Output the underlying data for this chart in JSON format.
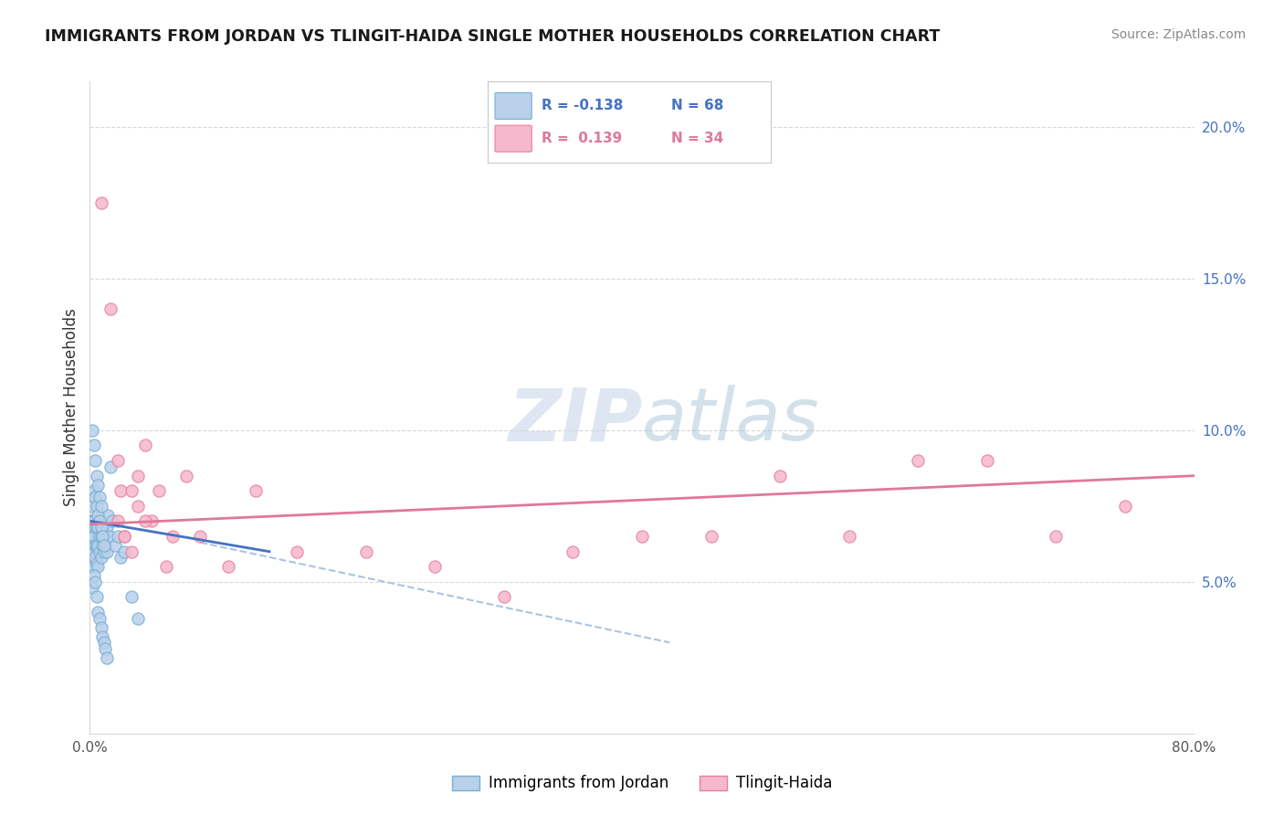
{
  "title": "IMMIGRANTS FROM JORDAN VS TLINGIT-HAIDA SINGLE MOTHER HOUSEHOLDS CORRELATION CHART",
  "source": "Source: ZipAtlas.com",
  "ylabel": "Single Mother Households",
  "xlim": [
    0.0,
    0.8
  ],
  "ylim": [
    0.0,
    0.215
  ],
  "ytick_vals": [
    0.05,
    0.1,
    0.15,
    0.2
  ],
  "ytick_labels": [
    "5.0%",
    "10.0%",
    "15.0%",
    "20.0%"
  ],
  "xtick_vals": [
    0.0,
    0.8
  ],
  "xtick_labels": [
    "0.0%",
    "80.0%"
  ],
  "blue_color": "#b8d0ea",
  "blue_edge_color": "#7aafd4",
  "pink_color": "#f5b8cc",
  "pink_edge_color": "#e8809e",
  "blue_line_color": "#4472c4",
  "pink_line_color": "#e07898",
  "dashed_line_color": "#aac4e0",
  "watermark_text": "ZIPatlas",
  "background_color": "#ffffff",
  "legend_border_color": "#c8c8c8",
  "blue_scatter_x": [
    0.001,
    0.001,
    0.001,
    0.002,
    0.002,
    0.002,
    0.002,
    0.002,
    0.003,
    0.003,
    0.003,
    0.003,
    0.004,
    0.004,
    0.004,
    0.005,
    0.005,
    0.005,
    0.006,
    0.006,
    0.006,
    0.007,
    0.007,
    0.008,
    0.008,
    0.009,
    0.009,
    0.01,
    0.01,
    0.011,
    0.012,
    0.012,
    0.013,
    0.014,
    0.015,
    0.016,
    0.018,
    0.02,
    0.022,
    0.025,
    0.03,
    0.035,
    0.002,
    0.003,
    0.004,
    0.005,
    0.006,
    0.007,
    0.008,
    0.009,
    0.01,
    0.011,
    0.012,
    0.003,
    0.004,
    0.005,
    0.006,
    0.007,
    0.008,
    0.009,
    0.01,
    0.002,
    0.003,
    0.004,
    0.005,
    0.006,
    0.007,
    0.008
  ],
  "blue_scatter_y": [
    0.06,
    0.065,
    0.07,
    0.055,
    0.06,
    0.065,
    0.07,
    0.075,
    0.055,
    0.06,
    0.065,
    0.07,
    0.058,
    0.062,
    0.068,
    0.056,
    0.062,
    0.068,
    0.055,
    0.062,
    0.068,
    0.06,
    0.065,
    0.058,
    0.065,
    0.062,
    0.068,
    0.06,
    0.065,
    0.062,
    0.06,
    0.068,
    0.072,
    0.065,
    0.088,
    0.07,
    0.062,
    0.065,
    0.058,
    0.06,
    0.045,
    0.038,
    0.048,
    0.052,
    0.05,
    0.045,
    0.04,
    0.038,
    0.035,
    0.032,
    0.03,
    0.028,
    0.025,
    0.08,
    0.078,
    0.075,
    0.072,
    0.07,
    0.068,
    0.065,
    0.062,
    0.1,
    0.095,
    0.09,
    0.085,
    0.082,
    0.078,
    0.075
  ],
  "pink_scatter_x": [
    0.008,
    0.015,
    0.02,
    0.022,
    0.025,
    0.03,
    0.035,
    0.04,
    0.045,
    0.05,
    0.06,
    0.07,
    0.08,
    0.1,
    0.12,
    0.15,
    0.2,
    0.25,
    0.3,
    0.35,
    0.4,
    0.45,
    0.5,
    0.55,
    0.6,
    0.65,
    0.7,
    0.75,
    0.02,
    0.025,
    0.03,
    0.035,
    0.04,
    0.055
  ],
  "pink_scatter_y": [
    0.175,
    0.14,
    0.09,
    0.08,
    0.065,
    0.08,
    0.085,
    0.095,
    0.07,
    0.08,
    0.065,
    0.085,
    0.065,
    0.055,
    0.08,
    0.06,
    0.06,
    0.055,
    0.045,
    0.06,
    0.065,
    0.065,
    0.085,
    0.065,
    0.09,
    0.09,
    0.065,
    0.075,
    0.07,
    0.065,
    0.06,
    0.075,
    0.07,
    0.055
  ],
  "blue_line_x": [
    0.001,
    0.13
  ],
  "blue_line_y": [
    0.07,
    0.06
  ],
  "dashed_line_x": [
    0.08,
    0.42
  ],
  "dashed_line_y": [
    0.063,
    0.03
  ],
  "pink_line_x": [
    0.0,
    0.8
  ],
  "pink_line_y": [
    0.069,
    0.085
  ]
}
